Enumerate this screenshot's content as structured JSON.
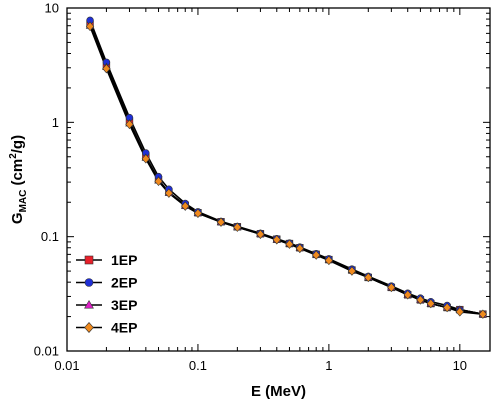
{
  "chart_data": {
    "type": "line",
    "xscale": "log",
    "yscale": "log",
    "xlim": [
      0.01,
      17
    ],
    "ylim": [
      0.01,
      10
    ],
    "xlabel": "E (MeV)",
    "ylabel": {
      "main": "G",
      "sub": "MAC",
      "unit_prefix": " (cm",
      "unit_sup": "2",
      "unit_suffix": "/g)"
    },
    "x_ticks": [
      {
        "value": 0.01,
        "label": "0.01"
      },
      {
        "value": 0.1,
        "label": "0.1"
      },
      {
        "value": 1,
        "label": "1"
      },
      {
        "value": 10,
        "label": "10"
      }
    ],
    "y_ticks": [
      {
        "value": 0.01,
        "label": "0.01"
      },
      {
        "value": 0.1,
        "label": "0.1"
      },
      {
        "value": 1,
        "label": "1"
      },
      {
        "value": 10,
        "label": "10"
      }
    ],
    "legend_position": "bottom-left",
    "x": [
      0.015,
      0.02,
      0.03,
      0.04,
      0.05,
      0.06,
      0.08,
      0.1,
      0.15,
      0.2,
      0.3,
      0.4,
      0.5,
      0.6,
      0.8,
      1,
      1.5,
      2,
      3,
      4,
      5,
      6,
      8,
      10,
      15
    ],
    "series": [
      {
        "name": "1EP",
        "color": "#e8202a",
        "marker": "square",
        "values": [
          7.2,
          3.15,
          1.02,
          0.5,
          0.315,
          0.245,
          0.188,
          0.162,
          0.135,
          0.122,
          0.106,
          0.095,
          0.087,
          0.08,
          0.07,
          0.063,
          0.051,
          0.044,
          0.036,
          0.031,
          0.028,
          0.026,
          0.024,
          0.023,
          0.021
        ]
      },
      {
        "name": "2EP",
        "color": "#1f2fd6",
        "marker": "circle",
        "values": [
          7.8,
          3.35,
          1.1,
          0.54,
          0.335,
          0.26,
          0.195,
          0.165,
          0.136,
          0.123,
          0.107,
          0.096,
          0.088,
          0.081,
          0.071,
          0.064,
          0.052,
          0.045,
          0.037,
          0.032,
          0.029,
          0.027,
          0.025,
          0.023,
          0.021
        ]
      },
      {
        "name": "3EP",
        "color": "#e020c8",
        "marker": "triangle",
        "values": [
          7.0,
          3.05,
          0.98,
          0.49,
          0.31,
          0.242,
          0.186,
          0.161,
          0.134,
          0.121,
          0.106,
          0.094,
          0.087,
          0.08,
          0.07,
          0.063,
          0.051,
          0.044,
          0.036,
          0.031,
          0.028,
          0.026,
          0.024,
          0.023,
          0.021
        ]
      },
      {
        "name": "4EP",
        "color": "#f08a1e",
        "marker": "diamond",
        "values": [
          6.9,
          2.95,
          0.96,
          0.48,
          0.305,
          0.24,
          0.185,
          0.16,
          0.134,
          0.121,
          0.105,
          0.094,
          0.086,
          0.079,
          0.069,
          0.062,
          0.05,
          0.044,
          0.036,
          0.031,
          0.028,
          0.026,
          0.024,
          0.022,
          0.021
        ]
      }
    ]
  }
}
